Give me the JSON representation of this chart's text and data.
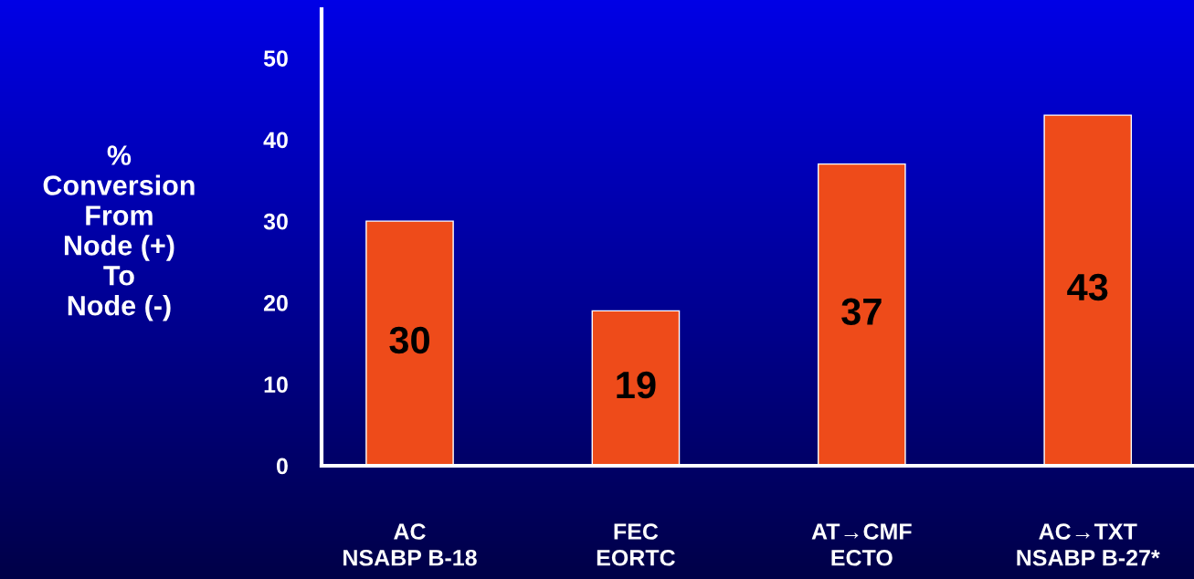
{
  "chart_data": {
    "type": "bar",
    "ylabel": "%\nConversion\nFrom\nNode (+)\nTo\nNode (-)",
    "categories": [
      "AC\nNSABP B-18",
      "FEC\nEORTC",
      "AT→CMF\nECTO",
      "AC→TXT\nNSABP B-27*"
    ],
    "values": [
      30,
      19,
      37,
      43
    ],
    "color": "#ee4b1a",
    "data_labels": true,
    "ylim": [
      0,
      56
    ],
    "yticks": [
      0,
      10,
      20,
      30,
      40,
      50
    ],
    "grid": false
  }
}
